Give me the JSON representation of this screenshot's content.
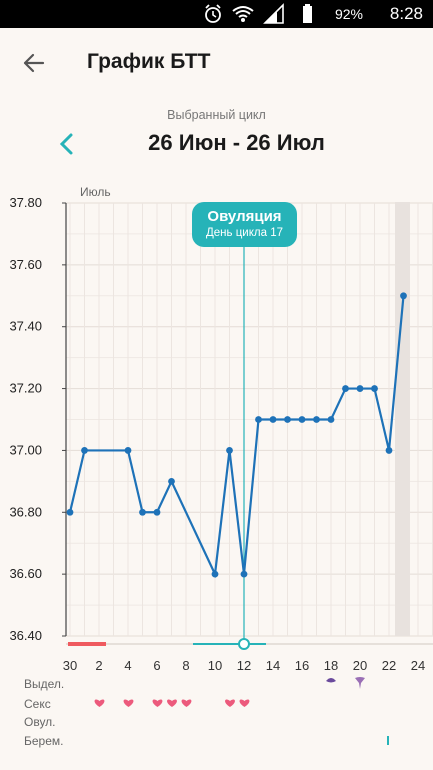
{
  "status_bar": {
    "battery": "92%",
    "time": "8:28"
  },
  "header": {
    "title": "График БТТ"
  },
  "cycle": {
    "label": "Выбранный цикл",
    "range": "26 Июн - 26 Июл"
  },
  "ovulation": {
    "title": "Овуляция",
    "subtitle": "День цикла 17",
    "x": 12
  },
  "rows": {
    "discharge": "Выдел.",
    "sex": "Секс",
    "ovulation": "Овул.",
    "pregnancy": "Берем."
  },
  "colors": {
    "line": "#1e72b8",
    "accent": "#26b3b8",
    "period": "#ef5a5f",
    "heart": "#ec5a7c",
    "discharge": "#6a4a9c"
  },
  "icons": {
    "back": "arrow-left-icon",
    "prev": "chevron-left-icon",
    "sex": "heart-icon"
  },
  "chart_data": {
    "type": "line",
    "month_label": "Июль",
    "ylim": [
      36.4,
      37.8
    ],
    "yticks": [
      "37.80",
      "37.60",
      "37.40",
      "37.20",
      "37.00",
      "36.80",
      "36.60",
      "36.40"
    ],
    "xlim": [
      30,
      24
    ],
    "xticks": [
      "30",
      "2",
      "4",
      "6",
      "8",
      "10",
      "12",
      "14",
      "16",
      "18",
      "20",
      "22",
      "24"
    ],
    "points": [
      {
        "x": 30,
        "y": 36.8
      },
      {
        "x": 1,
        "y": 37.0
      },
      {
        "x": 4,
        "y": 37.0
      },
      {
        "x": 5,
        "y": 36.8
      },
      {
        "x": 6,
        "y": 36.8
      },
      {
        "x": 7,
        "y": 36.9
      },
      {
        "x": 10,
        "y": 36.6
      },
      {
        "x": 11,
        "y": 37.0
      },
      {
        "x": 12,
        "y": 36.6
      },
      {
        "x": 13,
        "y": 37.1
      },
      {
        "x": 14,
        "y": 37.1
      },
      {
        "x": 15,
        "y": 37.1
      },
      {
        "x": 16,
        "y": 37.1
      },
      {
        "x": 17,
        "y": 37.1
      },
      {
        "x": 18,
        "y": 37.1
      },
      {
        "x": 19,
        "y": 37.2
      },
      {
        "x": 20,
        "y": 37.2
      },
      {
        "x": 21,
        "y": 37.2
      },
      {
        "x": 22,
        "y": 37.0
      },
      {
        "x": 23,
        "y": 37.5
      }
    ],
    "sex_days": [
      2,
      4,
      6,
      7,
      8,
      11,
      12
    ]
  }
}
